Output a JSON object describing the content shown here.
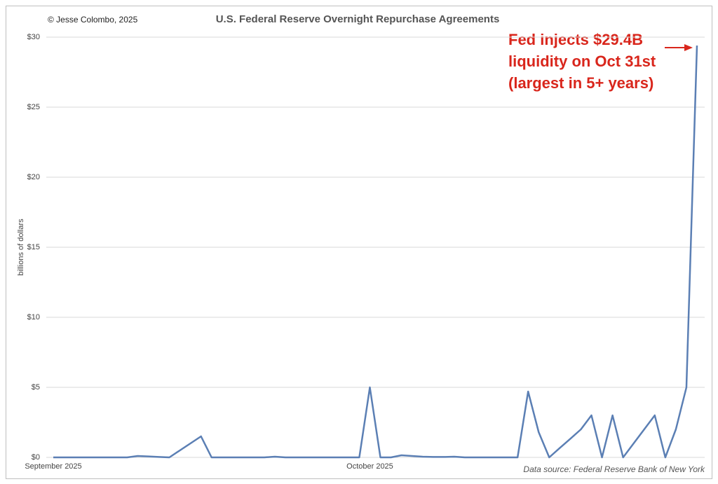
{
  "chart_data": {
    "type": "line",
    "title": "U.S. Federal Reserve Overnight Repurchase Agreements",
    "credit": "© Jesse Colombo, 2025",
    "y_label": "billions of dollars",
    "source": "Data source: Federal Reserve Bank of New York",
    "annotation": [
      "Fed injects $29.4B",
      "liquidity on Oct 31st",
      "(largest in 5+ years)"
    ],
    "annotation_color": "#d9261c",
    "categories": [
      "September 2025",
      null,
      null,
      null,
      null,
      null,
      null,
      null,
      null,
      null,
      null,
      null,
      null,
      null,
      null,
      null,
      null,
      null,
      null,
      null,
      null,
      null,
      null,
      null,
      null,
      null,
      null,
      null,
      null,
      null,
      "October 2025",
      null,
      null,
      null,
      null,
      null,
      null,
      null,
      null,
      null,
      null,
      null,
      null,
      null,
      null,
      null,
      null,
      null,
      null,
      null,
      null,
      null,
      null,
      null,
      null,
      null,
      null,
      null,
      null,
      null,
      null,
      null
    ],
    "values": [
      0,
      0,
      0,
      0,
      0,
      0,
      0,
      0,
      0.1,
      0.07,
      0.03,
      0,
      0.5,
      1,
      1.5,
      0,
      0,
      0,
      0,
      0,
      0,
      0.05,
      0,
      0,
      0,
      0,
      0,
      0,
      0,
      0,
      5,
      0,
      0,
      0.15,
      0.1,
      0.05,
      0.03,
      0.03,
      0.05,
      0,
      0,
      0,
      0,
      0,
      0,
      4.7,
      1.8,
      0,
      0.67,
      1.33,
      2,
      3,
      0,
      3,
      0,
      1,
      2,
      3,
      0,
      2,
      5,
      29.4
    ],
    "color": "#5b7fb4",
    "ylim": [
      0,
      30
    ],
    "yticks": [
      {
        "value": 0,
        "label": "$0"
      },
      {
        "value": 5,
        "label": "$5"
      },
      {
        "value": 10,
        "label": "$10"
      },
      {
        "value": 15,
        "label": "$15"
      },
      {
        "value": 20,
        "label": "$20"
      },
      {
        "value": 25,
        "label": "$25"
      },
      {
        "value": 30,
        "label": "$30"
      }
    ],
    "grid": true
  }
}
